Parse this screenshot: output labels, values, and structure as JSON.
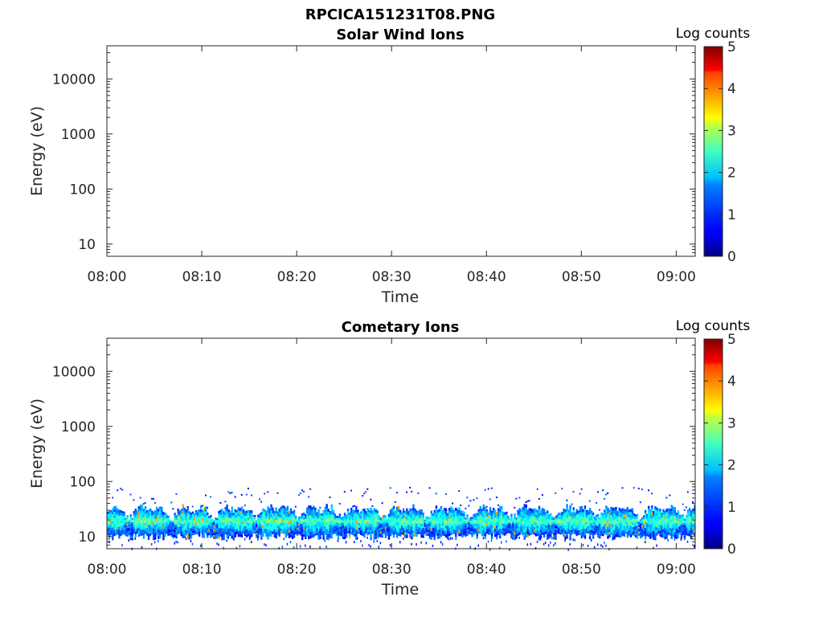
{
  "figure": {
    "title": "RPCICA151231T08.PNG"
  },
  "chart_data": [
    {
      "type": "heatmap",
      "title": "Solar Wind Ions",
      "xlabel": "Time",
      "ylabel": "Energy (eV)",
      "x_ticks": [
        "08:00",
        "08:10",
        "08:20",
        "08:30",
        "08:40",
        "08:50",
        "09:00"
      ],
      "xlim_minutes": [
        0,
        62
      ],
      "y_ticks": [
        "10",
        "100",
        "1000",
        "10000"
      ],
      "y_scale": "log",
      "ylim": [
        6,
        40000
      ],
      "colorbar": {
        "label": "Log counts",
        "ticks": [
          "0",
          "1",
          "2",
          "3",
          "4",
          "5"
        ],
        "range": [
          0,
          5
        ],
        "colormap": "jet"
      },
      "data_description": "empty",
      "band": null
    },
    {
      "type": "heatmap",
      "title": "Cometary Ions",
      "xlabel": "Time",
      "ylabel": "Energy (eV)",
      "x_ticks": [
        "08:00",
        "08:10",
        "08:20",
        "08:30",
        "08:40",
        "08:50",
        "09:00"
      ],
      "xlim_minutes": [
        0,
        62
      ],
      "y_ticks": [
        "10",
        "100",
        "1000",
        "10000"
      ],
      "y_scale": "log",
      "ylim": [
        6,
        40000
      ],
      "colorbar": {
        "label": "Log counts",
        "ticks": [
          "0",
          "1",
          "2",
          "3",
          "4",
          "5"
        ],
        "range": [
          0,
          5
        ],
        "colormap": "jet"
      },
      "band": {
        "energy_low_eV": 10,
        "energy_high_eV": 30,
        "peak_energy_eV": 19,
        "typical_log_counts": 2.3,
        "max_log_counts": 3.6,
        "sporadic_high_energy_max_eV": 80
      }
    }
  ]
}
